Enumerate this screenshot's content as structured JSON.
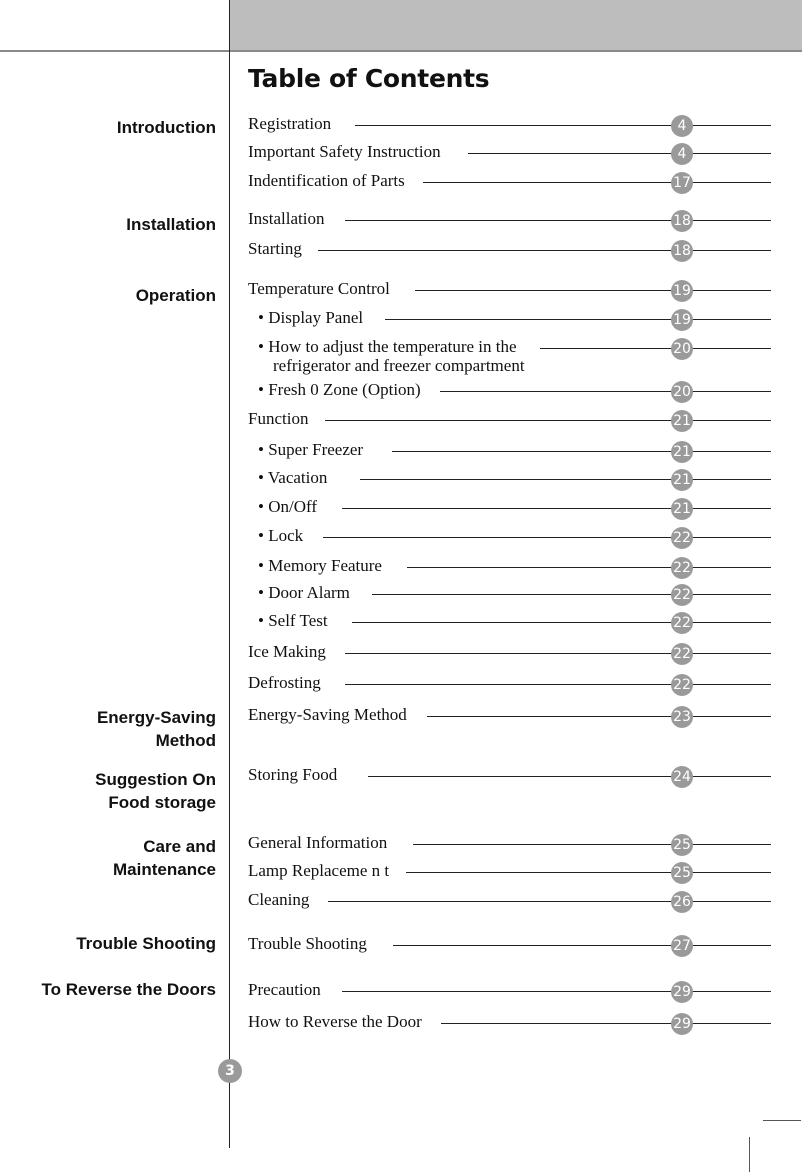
{
  "title": "Table of Contents",
  "page_number": "3",
  "sections": [
    {
      "label": "Introduction"
    },
    {
      "label": "Installation"
    },
    {
      "label": "Operation"
    },
    {
      "label": "Energy-Saving\nMethod"
    },
    {
      "label": "Suggestion On\nFood storage"
    },
    {
      "label": "Care and\nMaintenance"
    },
    {
      "label": "Trouble Shooting"
    },
    {
      "label": "To Reverse the Doors"
    }
  ],
  "entries": [
    {
      "text": "Registration",
      "page": "4"
    },
    {
      "text": "Important Safety Instruction",
      "page": "4"
    },
    {
      "text": "Indentification of Parts",
      "page": "17"
    },
    {
      "text": "Installation",
      "page": "18"
    },
    {
      "text": "Starting",
      "page": "18"
    },
    {
      "text": "Temperature Control",
      "page": "19"
    },
    {
      "text": "• Display Panel",
      "page": "19"
    },
    {
      "text": "• How to adjust the temperature in the",
      "text2": "refrigerator and freezer compartment",
      "page": "20"
    },
    {
      "text": "• Fresh 0 Zone (Option)",
      "page": "20"
    },
    {
      "text": "Function",
      "page": "21"
    },
    {
      "text": "• Super Freezer",
      "page": "21"
    },
    {
      "text": "• Vacation",
      "page": "21"
    },
    {
      "text": "• On/Off",
      "page": "21"
    },
    {
      "text": "• Lock",
      "page": "22"
    },
    {
      "text": "• Memory Feature",
      "page": "22"
    },
    {
      "text": "• Door Alarm",
      "page": "22"
    },
    {
      "text": "• Self Test",
      "page": "22"
    },
    {
      "text": "Ice Making",
      "page": "22"
    },
    {
      "text": "Defrosting",
      "page": "22"
    },
    {
      "text": "Energy-Saving Method",
      "page": "23"
    },
    {
      "text": "Storing Food",
      "page": "24"
    },
    {
      "text": "General Information",
      "page": "25"
    },
    {
      "text": "Lamp Replaceme n t",
      "page": "25"
    },
    {
      "text": "Cleaning",
      "page": "26"
    },
    {
      "text": "Trouble Shooting",
      "page": "27"
    },
    {
      "text": "Precaution",
      "page": "29"
    },
    {
      "text": "How to Reverse the Door",
      "page": "29"
    }
  ],
  "colors": {
    "header_band": "#bdbdbd",
    "badge": "#9a9a9a"
  }
}
